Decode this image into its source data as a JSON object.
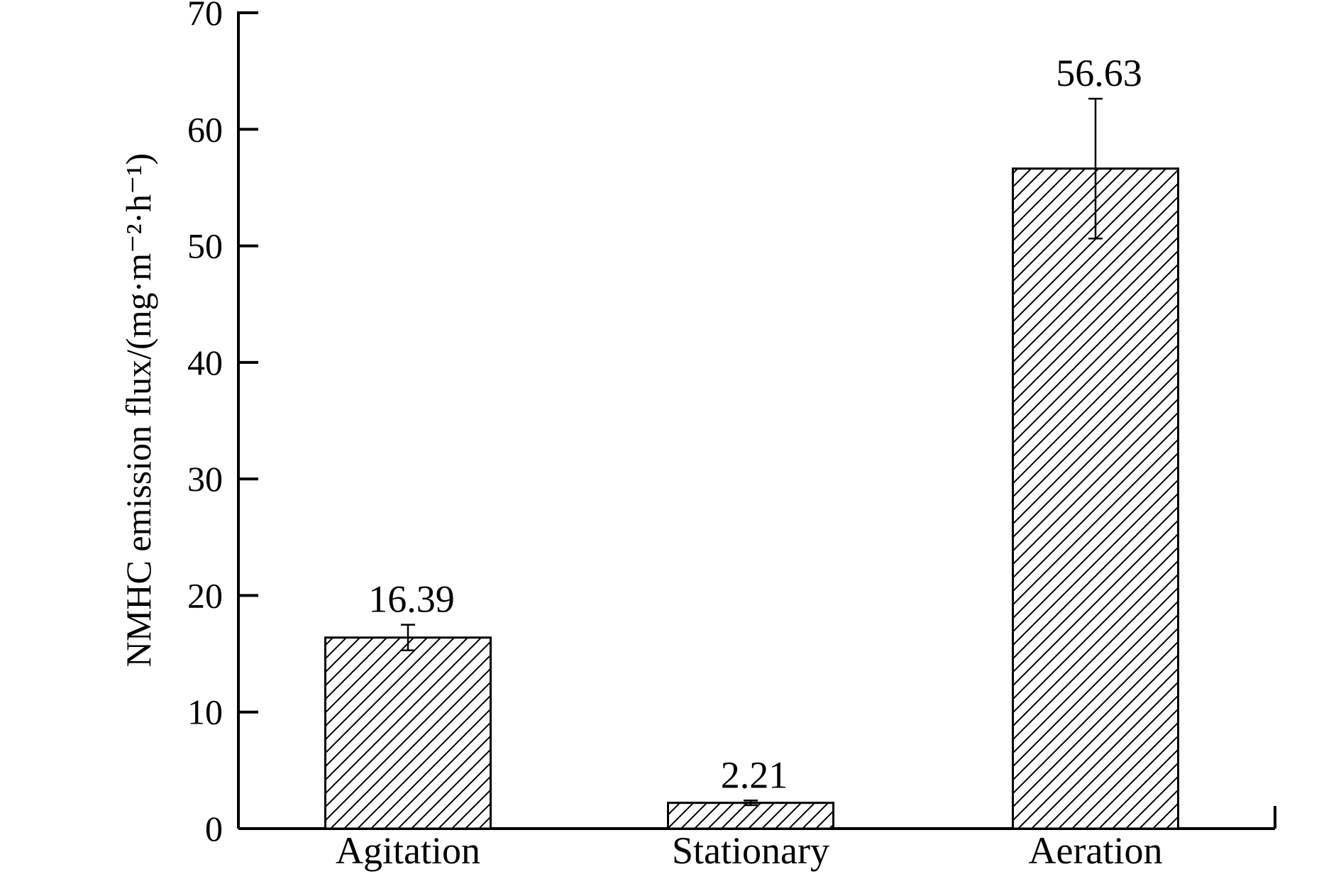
{
  "chart_data": {
    "type": "bar",
    "categories": [
      "Agitation",
      "Stationary",
      "Aeration"
    ],
    "values": [
      16.39,
      2.21,
      56.63
    ],
    "error_bars": [
      1.1,
      0.2,
      6.0
    ],
    "data_labels": [
      "16.39",
      "2.21",
      "56.63"
    ],
    "title": "",
    "xlabel": "",
    "ylabel": "NMHC emission flux/(mg·m⁻²·h⁻¹)",
    "ylim": [
      0,
      70
    ],
    "yticks": [
      0,
      10,
      20,
      30,
      40,
      50,
      60,
      70
    ],
    "grid": false,
    "legend": "none",
    "bar_fill": "diagonal-hatch",
    "colors": {
      "bar_edge": "#000000",
      "hatch": "#000000",
      "background": "#ffffff"
    }
  }
}
